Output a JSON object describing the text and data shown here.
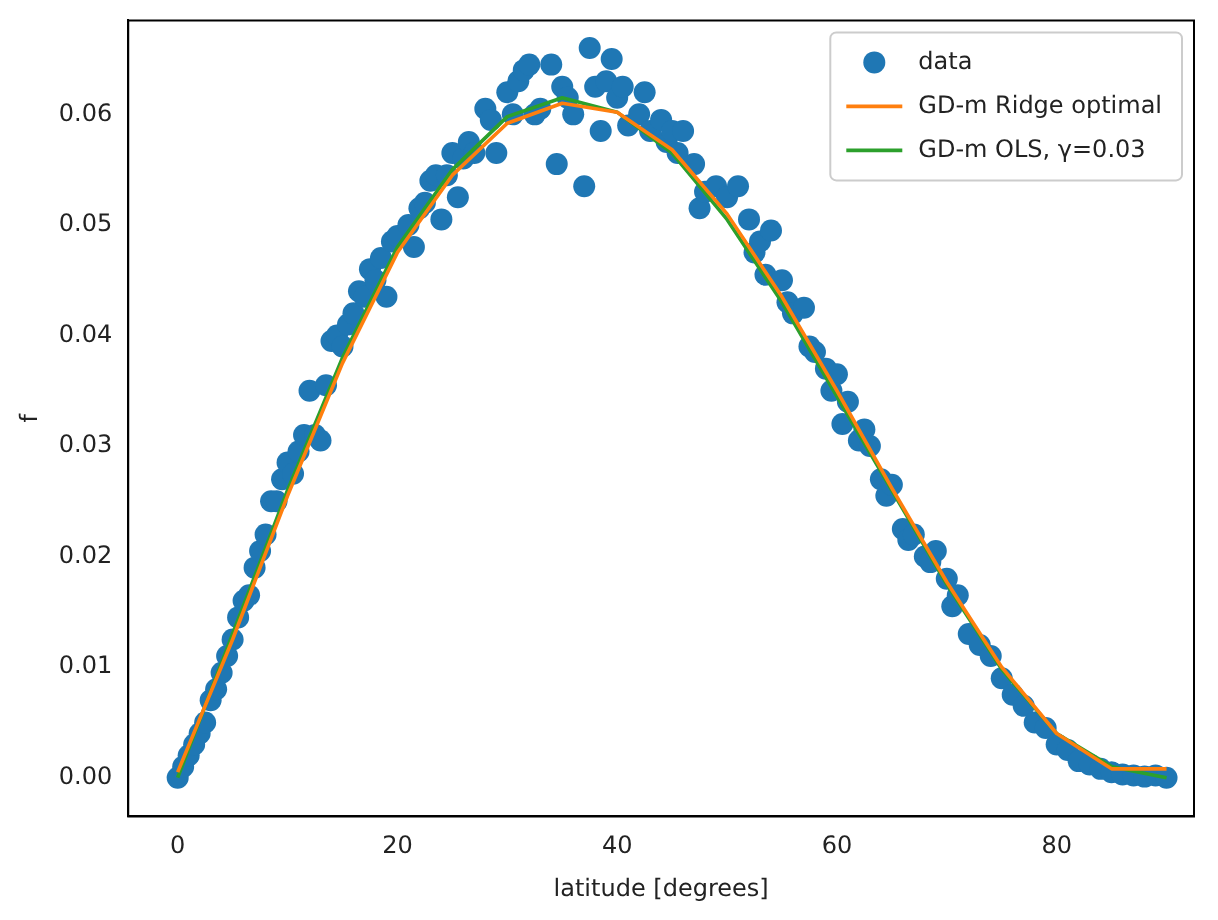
{
  "chart_data": {
    "type": "scatter",
    "xlabel": "latitude [degrees]",
    "ylabel": "f",
    "xlim": [
      -4.5,
      92.5
    ],
    "ylim": [
      -0.0035,
      0.0685
    ],
    "xticks": [
      0,
      20,
      40,
      60,
      80
    ],
    "yticks": [
      {
        "value": 0,
        "label": "0.00"
      },
      {
        "value": 0.01,
        "label": "0.01"
      },
      {
        "value": 0.02,
        "label": "0.02"
      },
      {
        "value": 0.03,
        "label": "0.03"
      },
      {
        "value": 0.04,
        "label": "0.04"
      },
      {
        "value": 0.05,
        "label": "0.05"
      },
      {
        "value": 0.06,
        "label": "0.06"
      }
    ],
    "grid": false,
    "legend": "top right",
    "series": [
      {
        "name": "data",
        "marker": "circle",
        "color": "#1f77b4",
        "x": [
          0,
          0.5,
          1,
          1.5,
          2,
          2.5,
          3,
          3.5,
          4,
          4.5,
          5,
          5.5,
          6,
          6.5,
          7,
          7.5,
          8,
          8.5,
          9,
          9.5,
          10,
          10.5,
          11,
          11.5,
          12,
          12.5,
          13,
          13.5,
          14,
          14.5,
          15,
          15.5,
          16,
          16.5,
          17,
          17.5,
          18,
          18.5,
          19,
          19.5,
          20,
          21,
          21.5,
          22,
          22.5,
          23,
          23.5,
          24,
          24.5,
          25,
          25.5,
          26,
          26.5,
          27,
          28,
          28.5,
          29,
          30,
          30.5,
          31,
          31.5,
          32,
          32.5,
          33,
          34,
          34.5,
          35,
          35.5,
          36,
          37,
          37.5,
          38,
          38.5,
          39,
          39.5,
          40,
          40.5,
          41,
          42,
          42.5,
          43,
          44,
          44.5,
          45,
          45.5,
          46,
          47,
          47.5,
          48,
          49,
          50,
          51,
          52,
          52.5,
          53,
          53.5,
          54,
          55,
          55.5,
          56,
          57,
          57.5,
          58,
          59,
          59.5,
          60,
          60.5,
          61,
          62,
          62.5,
          63,
          64,
          64.5,
          65,
          66,
          66.5,
          67,
          68,
          68.5,
          69,
          70,
          70.5,
          71,
          72,
          73,
          74,
          75,
          76,
          77,
          78,
          79,
          80,
          81,
          82,
          83,
          84,
          85,
          86,
          87,
          88,
          89,
          90
        ],
        "values": [
          0,
          0.001,
          0.002,
          0.003,
          0.004,
          0.005,
          0.007,
          0.008,
          0.0095,
          0.011,
          0.0125,
          0.0145,
          0.016,
          0.0165,
          0.019,
          0.0205,
          0.022,
          0.025,
          0.025,
          0.027,
          0.0285,
          0.0275,
          0.0295,
          0.031,
          0.035,
          0.031,
          0.0305,
          0.0355,
          0.0395,
          0.04,
          0.039,
          0.041,
          0.042,
          0.044,
          0.0435,
          0.046,
          0.045,
          0.047,
          0.0435,
          0.0485,
          0.049,
          0.05,
          0.048,
          0.0515,
          0.052,
          0.054,
          0.0545,
          0.0505,
          0.0545,
          0.0565,
          0.0525,
          0.056,
          0.0575,
          0.0565,
          0.0605,
          0.0595,
          0.0565,
          0.062,
          0.06,
          0.063,
          0.064,
          0.0645,
          0.06,
          0.0605,
          0.0645,
          0.0555,
          0.0625,
          0.0615,
          0.06,
          0.0535,
          0.066,
          0.0625,
          0.0585,
          0.063,
          0.065,
          0.0615,
          0.0625,
          0.059,
          0.06,
          0.062,
          0.0585,
          0.0595,
          0.0575,
          0.0585,
          0.0565,
          0.0585,
          0.0555,
          0.0515,
          0.053,
          0.0535,
          0.0525,
          0.0535,
          0.0505,
          0.0475,
          0.0485,
          0.0455,
          0.0495,
          0.045,
          0.043,
          0.042,
          0.0425,
          0.039,
          0.0385,
          0.037,
          0.035,
          0.0365,
          0.032,
          0.034,
          0.0305,
          0.0315,
          0.03,
          0.027,
          0.0255,
          0.0265,
          0.0225,
          0.0215,
          0.022,
          0.02,
          0.0195,
          0.0205,
          0.018,
          0.0155,
          0.0165,
          0.013,
          0.012,
          0.011,
          0.009,
          0.0075,
          0.0065,
          0.005,
          0.0045,
          0.003,
          0.0025,
          0.0015,
          0.0012,
          0.0008,
          0.0005,
          0.0003,
          0.0002,
          0.0001,
          0.0002,
          0
        ]
      },
      {
        "name": "GD-m Ridge optimal",
        "type": "line",
        "marker": "none",
        "color": "#ff7f0e",
        "x": [
          0,
          5,
          10,
          15,
          20,
          25,
          30,
          35,
          40,
          45,
          50,
          55,
          60,
          65,
          70,
          75,
          80,
          85,
          90
        ],
        "values": [
          0.0005,
          0.0125,
          0.0255,
          0.0375,
          0.0475,
          0.0545,
          0.0592,
          0.061,
          0.0602,
          0.0568,
          0.051,
          0.0435,
          0.035,
          0.0262,
          0.0177,
          0.01,
          0.004,
          0.0008,
          0.0008
        ]
      },
      {
        "name": "GD-m OLS, γ=0.03",
        "type": "line",
        "marker": "none",
        "color": "#2ca02c",
        "x": [
          0,
          5,
          10,
          15,
          20,
          25,
          30,
          35,
          40,
          45,
          50,
          55,
          60,
          65,
          70,
          75,
          80,
          85,
          90
        ],
        "values": [
          0,
          0.013,
          0.026,
          0.038,
          0.048,
          0.055,
          0.0598,
          0.0615,
          0.0602,
          0.0565,
          0.0505,
          0.043,
          0.0345,
          0.026,
          0.0175,
          0.0098,
          0.004,
          0.001,
          0
        ]
      }
    ]
  }
}
